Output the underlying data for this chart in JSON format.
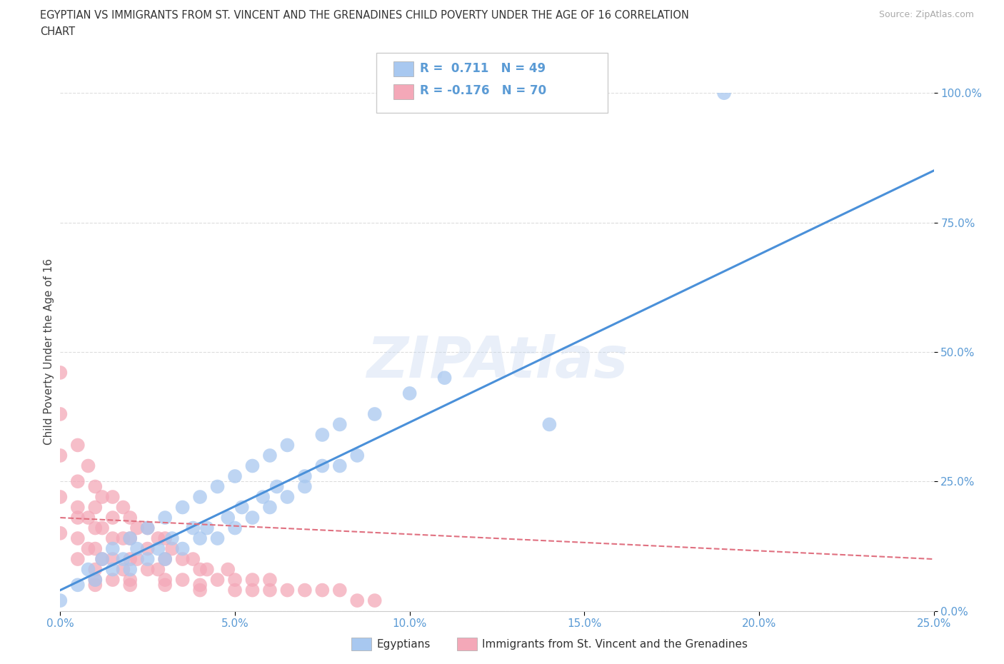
{
  "title_line1": "EGYPTIAN VS IMMIGRANTS FROM ST. VINCENT AND THE GRENADINES CHILD POVERTY UNDER THE AGE OF 16 CORRELATION",
  "title_line2": "CHART",
  "source_text": "Source: ZipAtlas.com",
  "ylabel": "Child Poverty Under the Age of 16",
  "xlim": [
    0.0,
    0.25
  ],
  "ylim": [
    0.0,
    1.0
  ],
  "xtick_labels": [
    "0.0%",
    "5.0%",
    "10.0%",
    "15.0%",
    "20.0%",
    "25.0%"
  ],
  "xtick_vals": [
    0.0,
    0.05,
    0.1,
    0.15,
    0.2,
    0.25
  ],
  "ytick_labels": [
    "0.0%",
    "25.0%",
    "50.0%",
    "75.0%",
    "100.0%"
  ],
  "ytick_vals": [
    0.0,
    0.25,
    0.5,
    0.75,
    1.0
  ],
  "color_blue": "#a8c8f0",
  "color_pink": "#f4a8b8",
  "color_blue_line": "#4a90d9",
  "color_pink_line": "#e07080",
  "color_tick": "#5b9bd5",
  "r_blue": 0.711,
  "r_pink": -0.176,
  "n_blue": 49,
  "n_pink": 70,
  "watermark": "ZIPAtlas",
  "background_color": "#ffffff",
  "grid_color": "#dddddd",
  "blue_scatter_x": [
    0.0,
    0.005,
    0.008,
    0.01,
    0.012,
    0.015,
    0.015,
    0.018,
    0.02,
    0.02,
    0.022,
    0.025,
    0.025,
    0.028,
    0.03,
    0.03,
    0.032,
    0.035,
    0.035,
    0.038,
    0.04,
    0.04,
    0.042,
    0.045,
    0.045,
    0.048,
    0.05,
    0.05,
    0.052,
    0.055,
    0.055,
    0.058,
    0.06,
    0.06,
    0.062,
    0.065,
    0.065,
    0.07,
    0.07,
    0.075,
    0.075,
    0.08,
    0.08,
    0.085,
    0.09,
    0.1,
    0.11,
    0.19,
    0.14
  ],
  "blue_scatter_y": [
    0.02,
    0.05,
    0.08,
    0.06,
    0.1,
    0.08,
    0.12,
    0.1,
    0.08,
    0.14,
    0.12,
    0.1,
    0.16,
    0.12,
    0.1,
    0.18,
    0.14,
    0.12,
    0.2,
    0.16,
    0.14,
    0.22,
    0.16,
    0.14,
    0.24,
    0.18,
    0.16,
    0.26,
    0.2,
    0.18,
    0.28,
    0.22,
    0.2,
    0.3,
    0.24,
    0.22,
    0.32,
    0.26,
    0.24,
    0.28,
    0.34,
    0.28,
    0.36,
    0.3,
    0.38,
    0.42,
    0.45,
    1.0,
    0.36
  ],
  "pink_scatter_x": [
    0.0,
    0.0,
    0.0,
    0.0,
    0.0,
    0.005,
    0.005,
    0.005,
    0.005,
    0.005,
    0.005,
    0.008,
    0.008,
    0.008,
    0.01,
    0.01,
    0.01,
    0.01,
    0.01,
    0.01,
    0.012,
    0.012,
    0.012,
    0.015,
    0.015,
    0.015,
    0.015,
    0.015,
    0.018,
    0.018,
    0.018,
    0.02,
    0.02,
    0.02,
    0.02,
    0.022,
    0.022,
    0.025,
    0.025,
    0.025,
    0.028,
    0.028,
    0.03,
    0.03,
    0.03,
    0.032,
    0.035,
    0.035,
    0.038,
    0.04,
    0.04,
    0.042,
    0.045,
    0.048,
    0.05,
    0.05,
    0.055,
    0.055,
    0.06,
    0.06,
    0.065,
    0.07,
    0.075,
    0.08,
    0.085,
    0.09,
    0.01,
    0.02,
    0.03,
    0.04
  ],
  "pink_scatter_y": [
    0.15,
    0.22,
    0.3,
    0.38,
    0.46,
    0.18,
    0.25,
    0.32,
    0.2,
    0.14,
    0.1,
    0.28,
    0.18,
    0.12,
    0.24,
    0.2,
    0.16,
    0.12,
    0.08,
    0.06,
    0.22,
    0.16,
    0.1,
    0.22,
    0.18,
    0.14,
    0.1,
    0.06,
    0.2,
    0.14,
    0.08,
    0.18,
    0.14,
    0.1,
    0.06,
    0.16,
    0.1,
    0.16,
    0.12,
    0.08,
    0.14,
    0.08,
    0.14,
    0.1,
    0.06,
    0.12,
    0.1,
    0.06,
    0.1,
    0.08,
    0.04,
    0.08,
    0.06,
    0.08,
    0.06,
    0.04,
    0.06,
    0.04,
    0.06,
    0.04,
    0.04,
    0.04,
    0.04,
    0.04,
    0.02,
    0.02,
    0.05,
    0.05,
    0.05,
    0.05
  ],
  "blue_trendline_x": [
    0.0,
    0.25
  ],
  "blue_trendline_y": [
    0.04,
    0.85
  ],
  "pink_trendline_x": [
    0.0,
    0.25
  ],
  "pink_trendline_y": [
    0.18,
    0.1
  ]
}
